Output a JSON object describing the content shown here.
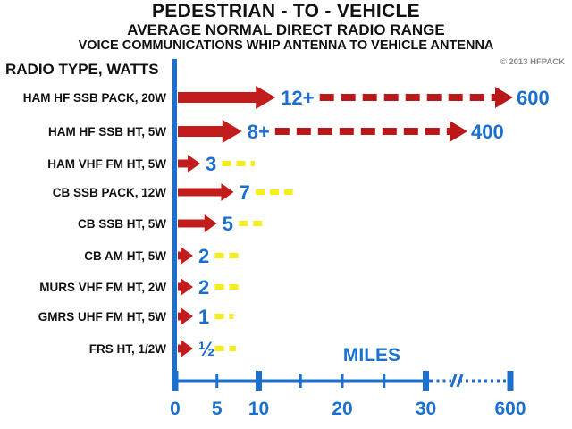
{
  "title": "PEDESTRIAN - TO - VEHICLE",
  "subtitle": "AVERAGE NORMAL DIRECT RADIO RANGE",
  "subtitle2": "VOICE COMMUNICATIONS WHIP ANTENNA TO VEHICLE ANTENNA",
  "copyright": "© 2013 HFPACK",
  "colors": {
    "arrow": "#c21c1c",
    "dash_red": "#b81818",
    "dash_yellow": "#f4ee1a",
    "axis": "#1b6fcf",
    "label_blue": "#1b6fcf"
  },
  "chart_data": {
    "type": "bar",
    "ylabel": "RADIO TYPE, WATTS",
    "xlabel": "MILES",
    "x_ticks": [
      "0",
      "5",
      "10",
      "20",
      "30",
      "600"
    ],
    "x_scale": "broken axis: linear 0–30 miles, break marked '//', then 600",
    "categories": [
      "HAM HF SSB PACK, 20W",
      "HAM HF SSB HT, 5W",
      "HAM VHF FM HT, 5W",
      "CB SSB PACK, 12W",
      "CB SSB HT, 5W",
      "CB AM HT, 5W",
      "MURS VHF FM HT, 2W",
      "GMRS UHF FM HT, 5W",
      "FRS HT, 1/2W"
    ],
    "values": [
      12,
      8,
      3,
      7,
      5,
      2,
      2,
      1,
      0.5
    ],
    "value_labels": [
      "12+",
      "8+",
      "3",
      "7",
      "5",
      "2",
      "2",
      "1",
      "½"
    ],
    "extended_range": [
      600,
      400,
      10,
      15,
      11,
      8,
      8,
      5,
      5
    ],
    "extended_labels": [
      "600",
      "400",
      "",
      "",
      "",
      "",
      "",
      "",
      ""
    ]
  }
}
